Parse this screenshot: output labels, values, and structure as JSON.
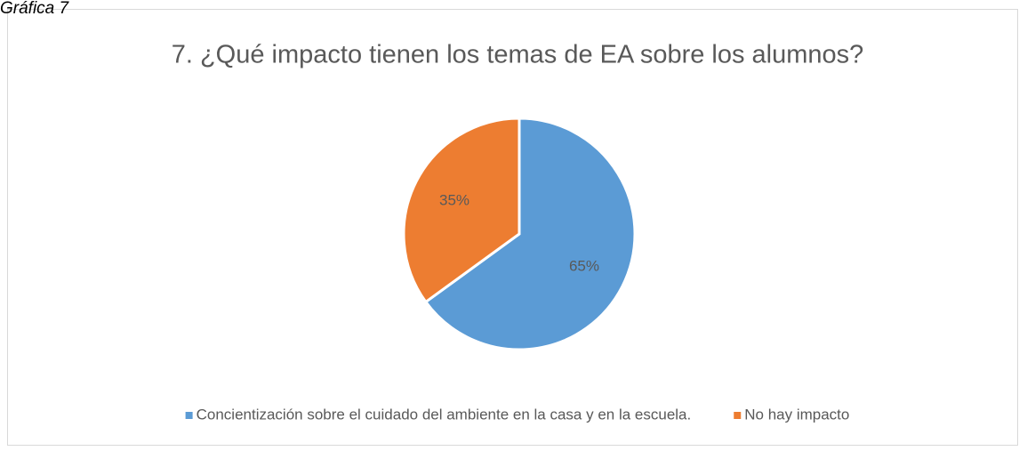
{
  "caption": "Gráfica 7",
  "chart_data": {
    "type": "pie",
    "title": "7. ¿Qué impacto tienen los temas de EA sobre los alumnos?",
    "categories": [
      "Concientización sobre el cuidado del ambiente en la casa y en la escuela.",
      "No hay impacto"
    ],
    "values": [
      65,
      35
    ],
    "value_labels": [
      "65%",
      "35%"
    ],
    "colors": [
      "#5b9bd5",
      "#ed7d31"
    ],
    "legend": "bottom"
  }
}
